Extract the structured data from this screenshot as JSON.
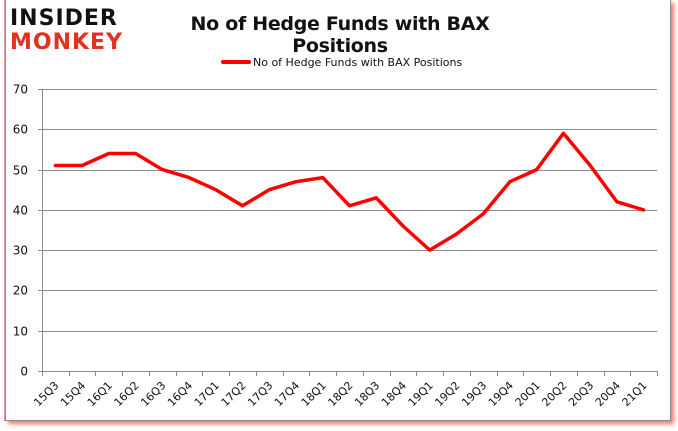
{
  "logo": {
    "line1": "INSIDER",
    "line2": "MONKEY"
  },
  "chart_data": {
    "type": "line",
    "title": "No of Hedge Funds with BAX Positions",
    "xlabel": "",
    "ylabel": "",
    "ylim": [
      0,
      70
    ],
    "yticks": [
      0,
      10,
      20,
      30,
      40,
      50,
      60,
      70
    ],
    "grid": true,
    "legend_position": "top",
    "categories": [
      "15Q3",
      "15Q4",
      "16Q1",
      "16Q2",
      "16Q3",
      "16Q4",
      "17Q1",
      "17Q2",
      "17Q3",
      "17Q4",
      "18Q1",
      "18Q2",
      "18Q3",
      "18Q4",
      "19Q1",
      "19Q2",
      "19Q3",
      "19Q4",
      "20Q1",
      "20Q2",
      "20Q3",
      "20Q4",
      "21Q1"
    ],
    "series": [
      {
        "name": "No of Hedge Funds with BAX Positions",
        "color": "#ff0000",
        "values": [
          51,
          51,
          54,
          54,
          50,
          48,
          45,
          41,
          45,
          47,
          48,
          41,
          43,
          36,
          30,
          34,
          39,
          47,
          50,
          59,
          51,
          42,
          40
        ]
      }
    ]
  },
  "colors": {
    "line": "#ff0000",
    "grid": "#8c8c8c",
    "logo_red": "#e0321e",
    "logo_black": "#111111"
  }
}
